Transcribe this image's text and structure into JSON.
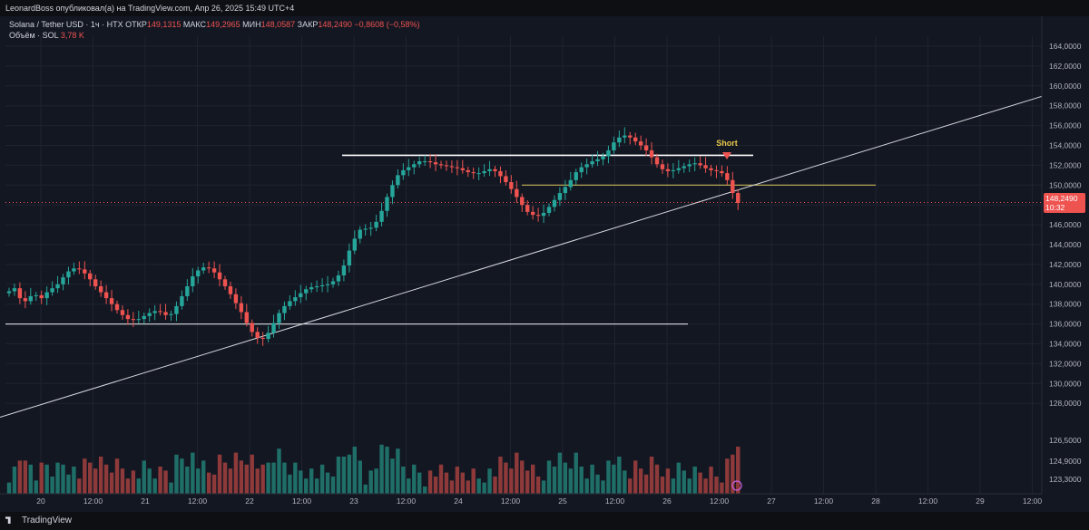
{
  "header": {
    "published": "LeonardBoss опубликовал(а) на TradingView.com, Апр 26, 2025 15:49 UTC+4",
    "symbol": "Solana / Tether USD · 1ч · HTX",
    "open_label": "ОТКР",
    "open": "149,1315",
    "high_label": "МАКС",
    "high": "149,2965",
    "low_label": "МИН",
    "low": "148,0587",
    "close_label": "ЗАКР",
    "close": "148,2490",
    "change": "−0,8608 (−0,58%)",
    "volume_label": "Объём · SOL",
    "volume": "3,78 K"
  },
  "currency": "USDT",
  "brand": "TradingView",
  "last_price": {
    "value": "148,2490",
    "countdown": "10:32"
  },
  "chart_data": {
    "type": "candlestick",
    "yticks": [
      "164,0000",
      "162,0000",
      "160,0000",
      "158,0000",
      "156,0000",
      "154,0000",
      "152,0000",
      "150,0000",
      "148,0000",
      "146,0000",
      "144,0000",
      "142,0000",
      "140,0000",
      "138,0000",
      "136,0000",
      "134,0000",
      "132,0000",
      "130,0000",
      "128,0000",
      "126,5000",
      "124,9000",
      "123,3000"
    ],
    "xticks": [
      "20",
      "12:00",
      "21",
      "12:00",
      "22",
      "12:00",
      "23",
      "12:00",
      "24",
      "12:00",
      "25",
      "12:00",
      "26",
      "12:00",
      "27",
      "12:00",
      "28",
      "12:00",
      "29",
      "12:00"
    ],
    "annotation": "Short",
    "horizontal_levels": [
      153.0,
      150.0,
      136.0
    ],
    "trendline": {
      "from": [
        0,
        126.6
      ],
      "to": [
        1150,
        159.0
      ]
    },
    "price_closes": [
      139.3,
      139.6,
      138.6,
      138.3,
      138.8,
      138.9,
      138.6,
      139.2,
      139.6,
      140.0,
      140.7,
      141.3,
      141.6,
      141.5,
      141.1,
      140.5,
      139.8,
      139.2,
      138.6,
      138.0,
      137.4,
      136.9,
      136.5,
      136.4,
      136.5,
      136.8,
      137.1,
      137.3,
      137.2,
      136.9,
      137.0,
      137.8,
      138.8,
      139.8,
      140.8,
      141.4,
      141.7,
      141.6,
      141.2,
      140.5,
      139.8,
      139.0,
      138.1,
      137.2,
      136.1,
      135.2,
      134.6,
      134.5,
      135.1,
      136.1,
      137.1,
      137.8,
      138.3,
      138.7,
      139.1,
      139.5,
      139.7,
      139.8,
      139.9,
      140.0,
      140.3,
      140.9,
      141.9,
      143.4,
      144.6,
      145.5,
      145.6,
      145.7,
      146.3,
      147.4,
      148.8,
      150.0,
      151.0,
      151.5,
      151.8,
      152.1,
      152.4,
      152.4,
      152.3,
      152.1,
      152.0,
      151.9,
      151.8,
      151.7,
      151.5,
      151.3,
      151.2,
      151.2,
      151.4,
      151.6,
      151.4,
      150.9,
      150.3,
      149.6,
      148.8,
      148.0,
      147.3,
      147.0,
      146.9,
      147.2,
      147.8,
      148.5,
      149.2,
      149.8,
      150.5,
      151.3,
      151.8,
      152.1,
      152.4,
      152.6,
      152.9,
      153.5,
      154.3,
      154.8,
      155.0,
      154.8,
      154.4,
      154.0,
      153.5,
      152.8,
      152.1,
      151.6,
      151.4,
      151.5,
      151.7,
      151.9,
      152.1,
      152.2,
      152.0,
      151.7,
      151.5,
      151.4,
      151.2,
      150.5,
      149.2,
      148.2
    ],
    "volume_ticks": [
      "126,5000",
      "124,9000",
      "123,3000"
    ]
  }
}
